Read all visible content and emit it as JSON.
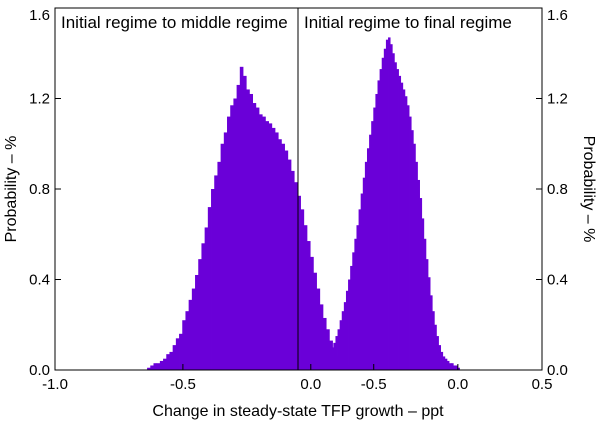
{
  "chart_data": {
    "type": "bar",
    "subtype": "histogram",
    "xlabel": "Change in steady-state TFP growth – ppt",
    "ylabel_left": "Probability – %",
    "ylabel_right": "Probability – %",
    "ylim": [
      0,
      1.6
    ],
    "y_ticks": [
      "0.0",
      "0.4",
      "0.8",
      "1.2",
      "1.6"
    ],
    "grid": false,
    "series_color": "#6a00d8",
    "panels": [
      {
        "title": "Initial regime to middle regime",
        "xlim": [
          -1.0,
          -0.05
        ],
        "x_ticks": [
          "-1.0",
          "-0.5",
          "0.0"
        ],
        "x_tick_values": [
          -1.0,
          -0.5,
          0.0
        ],
        "bin_width": 0.0125,
        "bin_start": -0.64,
        "values": [
          0.01,
          0.02,
          0.03,
          0.03,
          0.04,
          0.05,
          0.07,
          0.08,
          0.11,
          0.14,
          0.16,
          0.22,
          0.26,
          0.31,
          0.36,
          0.42,
          0.49,
          0.56,
          0.63,
          0.72,
          0.8,
          0.86,
          0.92,
          1.0,
          1.05,
          1.12,
          1.17,
          1.2,
          1.26,
          1.34,
          1.3,
          1.24,
          1.22,
          1.18,
          1.16,
          1.13,
          1.12,
          1.1,
          1.09,
          1.07,
          1.05,
          1.02,
          1.0,
          0.97,
          0.93,
          0.88,
          0.83,
          0.77,
          0.71,
          0.64,
          0.57,
          0.5,
          0.43,
          0.36,
          0.29,
          0.23,
          0.18,
          0.13,
          0.09,
          0.06,
          0.04,
          0.03,
          0.02,
          0.02,
          0.01
        ]
      },
      {
        "title": "Initial regime to final regime",
        "xlim": [
          -0.95,
          0.5
        ],
        "x_ticks": [
          "-0.5",
          "0.0",
          "0.5"
        ],
        "x_tick_values": [
          -0.5,
          0.0,
          0.5
        ],
        "bin_width": 0.0125,
        "bin_start": -0.84,
        "values": [
          0.01,
          0.02,
          0.03,
          0.04,
          0.05,
          0.06,
          0.08,
          0.1,
          0.12,
          0.15,
          0.18,
          0.22,
          0.26,
          0.3,
          0.35,
          0.4,
          0.46,
          0.52,
          0.58,
          0.64,
          0.71,
          0.78,
          0.85,
          0.92,
          0.98,
          1.04,
          1.1,
          1.16,
          1.22,
          1.28,
          1.33,
          1.38,
          1.42,
          1.46,
          1.47,
          1.44,
          1.4,
          1.36,
          1.33,
          1.3,
          1.27,
          1.24,
          1.21,
          1.17,
          1.12,
          1.06,
          1.0,
          0.92,
          0.84,
          0.76,
          0.67,
          0.58,
          0.49,
          0.41,
          0.33,
          0.26,
          0.2,
          0.15,
          0.11,
          0.08,
          0.06,
          0.05,
          0.04,
          0.03,
          0.03,
          0.02,
          0.02,
          0.01
        ]
      }
    ]
  }
}
